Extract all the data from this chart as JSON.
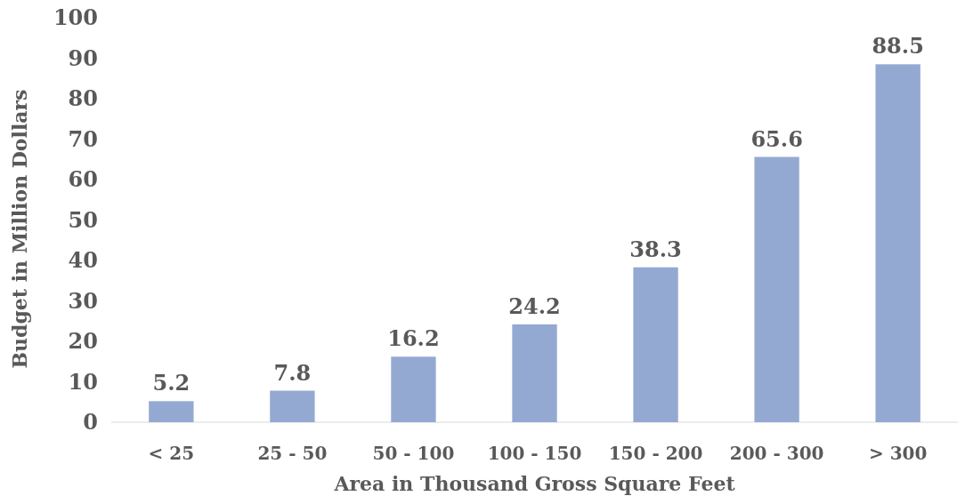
{
  "chart_data": {
    "type": "bar",
    "xlabel": "Area in Thousand Gross Square Feet",
    "ylabel": "Budget in Million Dollars",
    "categories": [
      "< 25",
      "25 - 50",
      "50 - 100",
      "100 - 150",
      "150 - 200",
      "200 - 300",
      "> 300"
    ],
    "values": [
      5.2,
      7.8,
      16.2,
      24.2,
      38.3,
      65.6,
      88.5
    ],
    "color": "#94a9d2",
    "ylim": [
      0,
      100
    ],
    "yticks": [
      0,
      10,
      20,
      30,
      40,
      50,
      60,
      70,
      80,
      90,
      100
    ],
    "data_labels": true
  }
}
